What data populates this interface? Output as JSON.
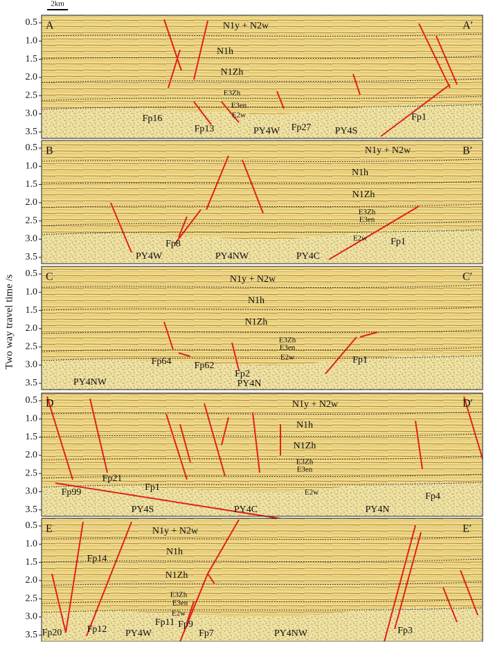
{
  "scale_bar": "2km",
  "y_axis_label": "Two way travel time /s",
  "y_ticks": [
    "0.5",
    "1.0",
    "1.5",
    "2.0",
    "2.5",
    "3.0",
    "3.5"
  ],
  "panels": [
    {
      "label": "A",
      "label_end": "A′",
      "strata": [
        "N1y + N2w",
        "N1h",
        "N1Zh",
        "E3Zh",
        "E3en",
        "E2w"
      ],
      "faults": [
        "Fp16",
        "Fp13",
        "Fp27",
        "Fp1"
      ],
      "wells": [
        "PY4W",
        "PY4S"
      ]
    },
    {
      "label": "B",
      "label_end": "B′",
      "strata": [
        "N1y + N2w",
        "N1h",
        "N1Zh",
        "E3Zh",
        "E3en",
        "E2w"
      ],
      "faults": [
        "Fp8",
        "Fp1"
      ],
      "wells": [
        "PY4W",
        "PY4NW",
        "PY4C"
      ]
    },
    {
      "label": "C",
      "label_end": "C′",
      "strata": [
        "N1y + N2w",
        "N1h",
        "N1Zh",
        "E3Zh",
        "E3en",
        "E2w"
      ],
      "faults": [
        "Fp64",
        "Fp62",
        "Fp2",
        "Fp1"
      ],
      "wells": [
        "PY4NW",
        "PY4N"
      ]
    },
    {
      "label": "D",
      "label_end": "D′",
      "strata": [
        "N1y + N2w",
        "N1h",
        "N1Zh",
        "E3Zh",
        "E3en",
        "E2w"
      ],
      "faults": [
        "Fp21",
        "Fp99",
        "Fp1",
        "Fp4"
      ],
      "wells": [
        "PY4S",
        "PY4C",
        "PY4N"
      ]
    },
    {
      "label": "E",
      "label_end": "E′",
      "strata": [
        "N1y + N2w",
        "N1h",
        "N1Zh",
        "E3Zh",
        "E3en",
        "E2w"
      ],
      "faults": [
        "Fp14",
        "Fp20",
        "Fp12",
        "Fp11",
        "Fp9",
        "Fp7",
        "Fp3"
      ],
      "wells": [
        "PY4W",
        "PY4NW"
      ]
    }
  ]
}
